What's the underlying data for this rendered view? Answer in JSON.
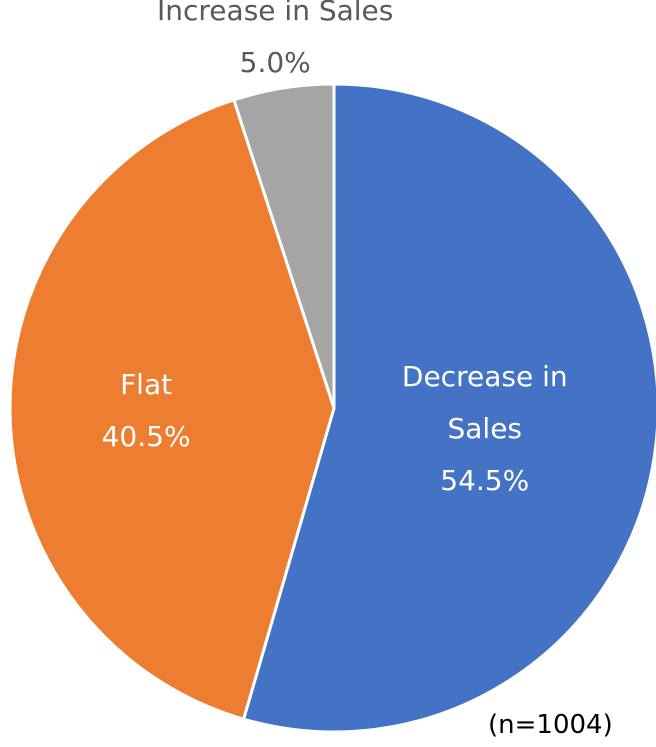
{
  "chart_data": {
    "type": "pie",
    "categories": [
      "Decrease in Sales",
      "Flat",
      "Increase in Sales"
    ],
    "values": [
      54.5,
      40.5,
      5.0
    ],
    "value_labels": [
      "54.5%",
      "40.5%",
      "5.0%"
    ],
    "colors": [
      "#4472c4",
      "#ed7d31",
      "#a5a5a5"
    ],
    "annotation": "(n=1004)"
  }
}
